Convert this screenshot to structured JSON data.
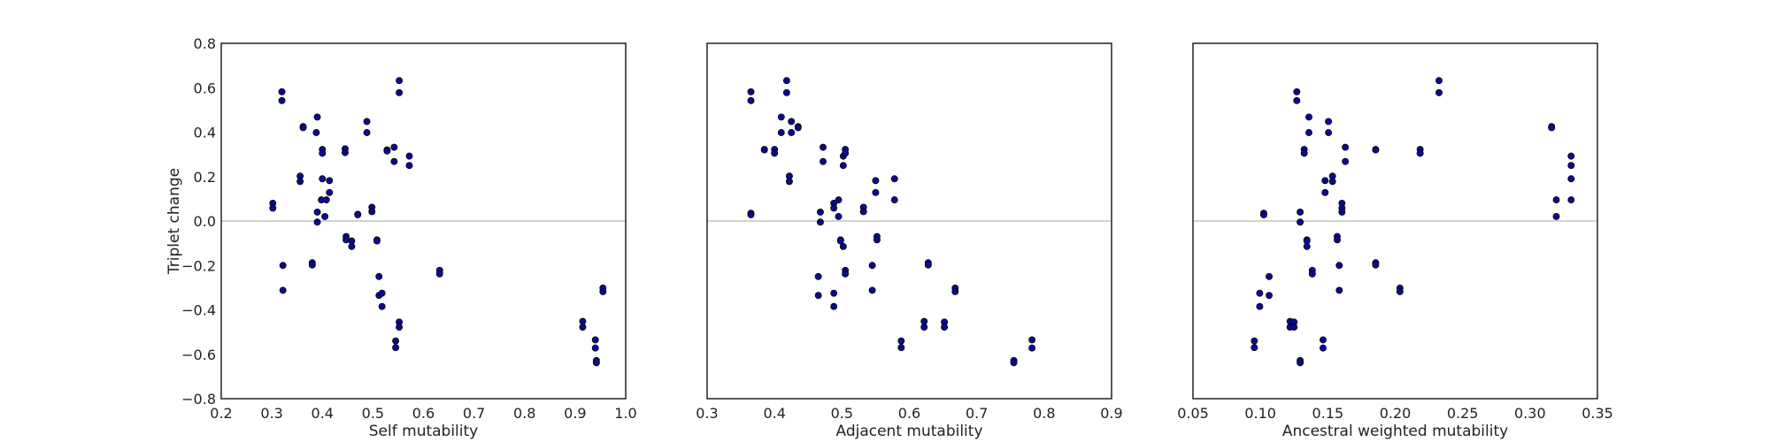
{
  "chart_data": [
    {
      "type": "scatter",
      "xlabel": "Self mutability",
      "ylabel": "Triplet change",
      "xlim": [
        0.2,
        1.0
      ],
      "ylim": [
        -0.8,
        0.8
      ],
      "xticks": [
        "0.2",
        "0.3",
        "0.4",
        "0.5",
        "0.6",
        "0.7",
        "0.8",
        "0.9",
        "1.0"
      ],
      "yticks": [
        "−0.8",
        "−0.6",
        "−0.4",
        "−0.2",
        "0.0",
        "0.2",
        "0.4",
        "0.6",
        "0.8"
      ],
      "show_y_tick_labels": true,
      "zero_line": true,
      "marker_color": "#0a0a8c",
      "points": [
        {
          "x": 0.302,
          "y": 0.08
        },
        {
          "x": 0.302,
          "y": 0.058
        },
        {
          "x": 0.32,
          "y": 0.582
        },
        {
          "x": 0.32,
          "y": 0.542
        },
        {
          "x": 0.322,
          "y": -0.2
        },
        {
          "x": 0.322,
          "y": -0.312
        },
        {
          "x": 0.356,
          "y": 0.202
        },
        {
          "x": 0.356,
          "y": 0.178
        },
        {
          "x": 0.362,
          "y": 0.425
        },
        {
          "x": 0.362,
          "y": 0.42
        },
        {
          "x": 0.38,
          "y": -0.188
        },
        {
          "x": 0.38,
          "y": -0.198
        },
        {
          "x": 0.39,
          "y": 0.468
        },
        {
          "x": 0.388,
          "y": 0.398
        },
        {
          "x": 0.39,
          "y": 0.04
        },
        {
          "x": 0.39,
          "y": -0.005
        },
        {
          "x": 0.4,
          "y": 0.322
        },
        {
          "x": 0.4,
          "y": 0.305
        },
        {
          "x": 0.4,
          "y": 0.19
        },
        {
          "x": 0.398,
          "y": 0.095
        },
        {
          "x": 0.408,
          "y": 0.095
        },
        {
          "x": 0.405,
          "y": 0.02
        },
        {
          "x": 0.414,
          "y": 0.182
        },
        {
          "x": 0.414,
          "y": 0.128
        },
        {
          "x": 0.445,
          "y": 0.325
        },
        {
          "x": 0.445,
          "y": 0.308
        },
        {
          "x": 0.447,
          "y": -0.07
        },
        {
          "x": 0.447,
          "y": -0.085
        },
        {
          "x": 0.458,
          "y": -0.09
        },
        {
          "x": 0.458,
          "y": -0.115
        },
        {
          "x": 0.47,
          "y": 0.03
        },
        {
          "x": 0.47,
          "y": 0.028
        },
        {
          "x": 0.488,
          "y": 0.448
        },
        {
          "x": 0.488,
          "y": 0.398
        },
        {
          "x": 0.498,
          "y": 0.062
        },
        {
          "x": 0.498,
          "y": 0.042
        },
        {
          "x": 0.508,
          "y": -0.085
        },
        {
          "x": 0.508,
          "y": -0.09
        },
        {
          "x": 0.512,
          "y": -0.25
        },
        {
          "x": 0.512,
          "y": -0.335
        },
        {
          "x": 0.518,
          "y": -0.325
        },
        {
          "x": 0.518,
          "y": -0.385
        },
        {
          "x": 0.528,
          "y": 0.32
        },
        {
          "x": 0.528,
          "y": 0.315
        },
        {
          "x": 0.542,
          "y": 0.332
        },
        {
          "x": 0.542,
          "y": 0.268
        },
        {
          "x": 0.545,
          "y": -0.54
        },
        {
          "x": 0.545,
          "y": -0.57
        },
        {
          "x": 0.552,
          "y": 0.632
        },
        {
          "x": 0.552,
          "y": 0.578
        },
        {
          "x": 0.552,
          "y": -0.455
        },
        {
          "x": 0.552,
          "y": -0.478
        },
        {
          "x": 0.572,
          "y": 0.292
        },
        {
          "x": 0.572,
          "y": 0.25
        },
        {
          "x": 0.632,
          "y": -0.222
        },
        {
          "x": 0.632,
          "y": -0.238
        },
        {
          "x": 0.915,
          "y": -0.452
        },
        {
          "x": 0.915,
          "y": -0.478
        },
        {
          "x": 0.94,
          "y": -0.535
        },
        {
          "x": 0.94,
          "y": -0.572
        },
        {
          "x": 0.942,
          "y": -0.628
        },
        {
          "x": 0.942,
          "y": -0.638
        },
        {
          "x": 0.955,
          "y": -0.302
        },
        {
          "x": 0.955,
          "y": -0.318
        }
      ]
    },
    {
      "type": "scatter",
      "xlabel": "Adjacent mutability",
      "ylabel": "",
      "xlim": [
        0.3,
        0.9
      ],
      "ylim": [
        -0.8,
        0.8
      ],
      "xticks": [
        "0.3",
        "0.4",
        "0.5",
        "0.6",
        "0.7",
        "0.8",
        "0.9"
      ],
      "yticks": [],
      "show_y_tick_labels": false,
      "zero_line": true,
      "marker_color": "#0a0a8c",
      "points": [
        {
          "x": 0.365,
          "y": 0.582
        },
        {
          "x": 0.365,
          "y": 0.542
        },
        {
          "x": 0.365,
          "y": 0.035
        },
        {
          "x": 0.365,
          "y": 0.028
        },
        {
          "x": 0.385,
          "y": 0.322
        },
        {
          "x": 0.385,
          "y": 0.32
        },
        {
          "x": 0.4,
          "y": 0.322
        },
        {
          "x": 0.4,
          "y": 0.305
        },
        {
          "x": 0.41,
          "y": 0.468
        },
        {
          "x": 0.41,
          "y": 0.398
        },
        {
          "x": 0.418,
          "y": 0.632
        },
        {
          "x": 0.418,
          "y": 0.578
        },
        {
          "x": 0.422,
          "y": 0.202
        },
        {
          "x": 0.422,
          "y": 0.178
        },
        {
          "x": 0.425,
          "y": 0.448
        },
        {
          "x": 0.425,
          "y": 0.398
        },
        {
          "x": 0.435,
          "y": 0.425
        },
        {
          "x": 0.435,
          "y": 0.42
        },
        {
          "x": 0.465,
          "y": -0.25
        },
        {
          "x": 0.465,
          "y": -0.335
        },
        {
          "x": 0.468,
          "y": 0.04
        },
        {
          "x": 0.468,
          "y": -0.005
        },
        {
          "x": 0.472,
          "y": 0.332
        },
        {
          "x": 0.472,
          "y": 0.268
        },
        {
          "x": 0.488,
          "y": 0.08
        },
        {
          "x": 0.488,
          "y": 0.058
        },
        {
          "x": 0.488,
          "y": -0.325
        },
        {
          "x": 0.488,
          "y": -0.385
        },
        {
          "x": 0.495,
          "y": 0.095
        },
        {
          "x": 0.495,
          "y": 0.02
        },
        {
          "x": 0.498,
          "y": -0.085
        },
        {
          "x": 0.498,
          "y": -0.09
        },
        {
          "x": 0.502,
          "y": 0.292
        },
        {
          "x": 0.502,
          "y": 0.25
        },
        {
          "x": 0.502,
          "y": -0.115
        },
        {
          "x": 0.505,
          "y": 0.322
        },
        {
          "x": 0.505,
          "y": 0.305
        },
        {
          "x": 0.505,
          "y": -0.222
        },
        {
          "x": 0.505,
          "y": -0.238
        },
        {
          "x": 0.532,
          "y": 0.062
        },
        {
          "x": 0.532,
          "y": 0.042
        },
        {
          "x": 0.545,
          "y": -0.2
        },
        {
          "x": 0.545,
          "y": -0.312
        },
        {
          "x": 0.55,
          "y": 0.182
        },
        {
          "x": 0.55,
          "y": 0.128
        },
        {
          "x": 0.552,
          "y": -0.07
        },
        {
          "x": 0.552,
          "y": -0.085
        },
        {
          "x": 0.578,
          "y": 0.19
        },
        {
          "x": 0.578,
          "y": 0.095
        },
        {
          "x": 0.588,
          "y": -0.54
        },
        {
          "x": 0.588,
          "y": -0.57
        },
        {
          "x": 0.622,
          "y": -0.452
        },
        {
          "x": 0.622,
          "y": -0.478
        },
        {
          "x": 0.628,
          "y": -0.188
        },
        {
          "x": 0.628,
          "y": -0.198
        },
        {
          "x": 0.652,
          "y": -0.455
        },
        {
          "x": 0.652,
          "y": -0.478
        },
        {
          "x": 0.668,
          "y": -0.302
        },
        {
          "x": 0.668,
          "y": -0.318
        },
        {
          "x": 0.755,
          "y": -0.628
        },
        {
          "x": 0.755,
          "y": -0.638
        },
        {
          "x": 0.782,
          "y": -0.535
        },
        {
          "x": 0.782,
          "y": -0.572
        }
      ]
    },
    {
      "type": "scatter",
      "xlabel": "Ancestral weighted mutability",
      "ylabel": "",
      "xlim": [
        0.05,
        0.35
      ],
      "ylim": [
        -0.8,
        0.8
      ],
      "xticks": [
        "0.05",
        "0.10",
        "0.15",
        "0.20",
        "0.25",
        "0.30",
        "0.35"
      ],
      "yticks": [],
      "show_y_tick_labels": false,
      "zero_line": true,
      "marker_color": "#0a0a8c",
      "points": [
        {
          "x": 0.0955,
          "y": -0.54
        },
        {
          "x": 0.0955,
          "y": -0.57
        },
        {
          "x": 0.0995,
          "y": -0.325
        },
        {
          "x": 0.0995,
          "y": -0.385
        },
        {
          "x": 0.1025,
          "y": 0.035
        },
        {
          "x": 0.1025,
          "y": 0.028
        },
        {
          "x": 0.1065,
          "y": -0.25
        },
        {
          "x": 0.1065,
          "y": -0.335
        },
        {
          "x": 0.122,
          "y": -0.452
        },
        {
          "x": 0.122,
          "y": -0.478
        },
        {
          "x": 0.125,
          "y": -0.455
        },
        {
          "x": 0.125,
          "y": -0.478
        },
        {
          "x": 0.127,
          "y": 0.582
        },
        {
          "x": 0.127,
          "y": 0.542
        },
        {
          "x": 0.1295,
          "y": -0.628
        },
        {
          "x": 0.1295,
          "y": -0.638
        },
        {
          "x": 0.1295,
          "y": 0.04
        },
        {
          "x": 0.1295,
          "y": -0.005
        },
        {
          "x": 0.1325,
          "y": 0.322
        },
        {
          "x": 0.1325,
          "y": 0.305
        },
        {
          "x": 0.1345,
          "y": -0.085
        },
        {
          "x": 0.1345,
          "y": -0.09
        },
        {
          "x": 0.1345,
          "y": -0.115
        },
        {
          "x": 0.136,
          "y": 0.468
        },
        {
          "x": 0.136,
          "y": 0.398
        },
        {
          "x": 0.1385,
          "y": -0.222
        },
        {
          "x": 0.1385,
          "y": -0.238
        },
        {
          "x": 0.1465,
          "y": -0.535
        },
        {
          "x": 0.1465,
          "y": -0.572
        },
        {
          "x": 0.148,
          "y": 0.182
        },
        {
          "x": 0.148,
          "y": 0.128
        },
        {
          "x": 0.1505,
          "y": 0.448
        },
        {
          "x": 0.1505,
          "y": 0.398
        },
        {
          "x": 0.1535,
          "y": 0.202
        },
        {
          "x": 0.1535,
          "y": 0.178
        },
        {
          "x": 0.157,
          "y": -0.07
        },
        {
          "x": 0.157,
          "y": -0.085
        },
        {
          "x": 0.1585,
          "y": -0.2
        },
        {
          "x": 0.1585,
          "y": -0.312
        },
        {
          "x": 0.1605,
          "y": 0.08
        },
        {
          "x": 0.1605,
          "y": 0.058
        },
        {
          "x": 0.1605,
          "y": 0.04
        },
        {
          "x": 0.163,
          "y": 0.332
        },
        {
          "x": 0.163,
          "y": 0.268
        },
        {
          "x": 0.1855,
          "y": 0.322
        },
        {
          "x": 0.1855,
          "y": 0.32
        },
        {
          "x": 0.1855,
          "y": -0.188
        },
        {
          "x": 0.1855,
          "y": -0.198
        },
        {
          "x": 0.2035,
          "y": -0.302
        },
        {
          "x": 0.2035,
          "y": -0.318
        },
        {
          "x": 0.2185,
          "y": 0.322
        },
        {
          "x": 0.2185,
          "y": 0.305
        },
        {
          "x": 0.2325,
          "y": 0.632
        },
        {
          "x": 0.2325,
          "y": 0.578
        },
        {
          "x": 0.316,
          "y": 0.425
        },
        {
          "x": 0.316,
          "y": 0.42
        },
        {
          "x": 0.3195,
          "y": 0.095
        },
        {
          "x": 0.3195,
          "y": 0.02
        },
        {
          "x": 0.3305,
          "y": 0.292
        },
        {
          "x": 0.3305,
          "y": 0.25
        },
        {
          "x": 0.3305,
          "y": 0.19
        },
        {
          "x": 0.3305,
          "y": 0.095
        }
      ]
    }
  ]
}
